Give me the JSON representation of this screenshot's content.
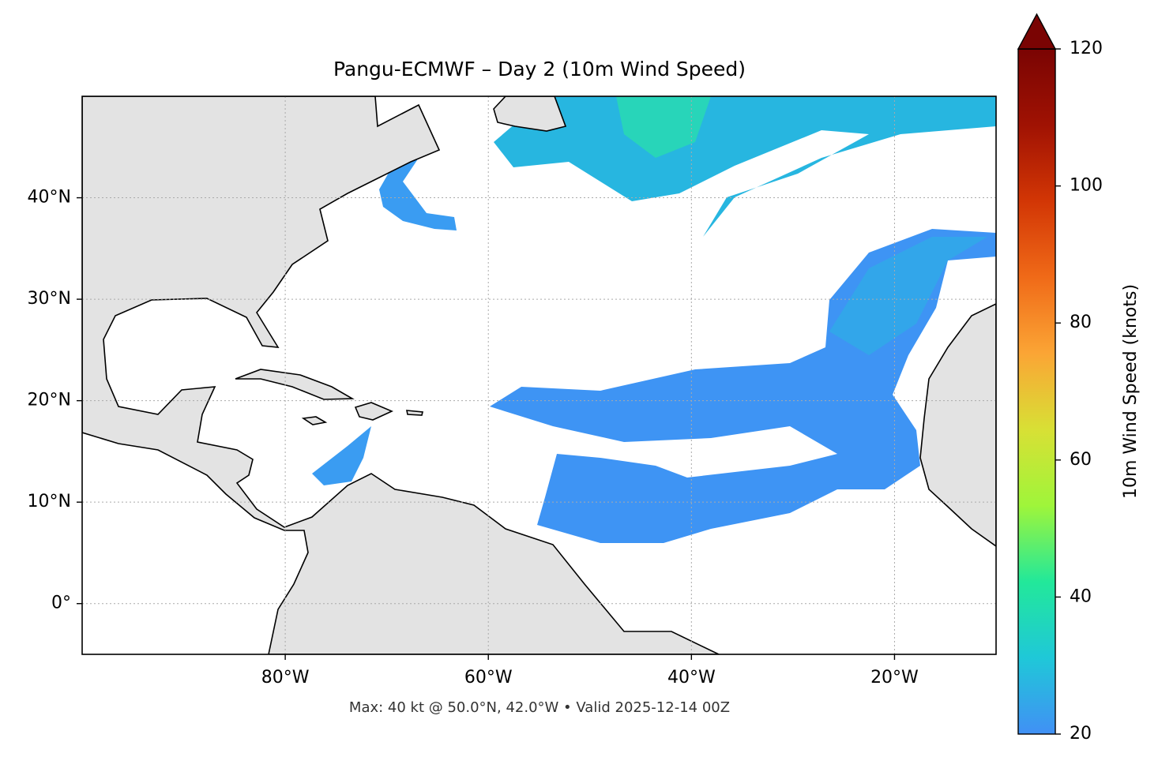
{
  "chart_data": {
    "type": "map",
    "title": "Pangu-ECMWF – Day 2 (10m Wind Speed)",
    "footer": "Max: 40 kt @ 50.0°N, 42.0°W • Valid 2025-12-14 00Z",
    "xlim": [
      -100,
      -10
    ],
    "ylim": [
      -5,
      50
    ],
    "xticks": [
      {
        "value": -80,
        "label": "80°W"
      },
      {
        "value": -60,
        "label": "60°W"
      },
      {
        "value": -40,
        "label": "40°W"
      },
      {
        "value": -20,
        "label": "20°W"
      }
    ],
    "yticks": [
      {
        "value": 0,
        "label": "0°"
      },
      {
        "value": 10,
        "label": "10°N"
      },
      {
        "value": 20,
        "label": "20°N"
      },
      {
        "value": 30,
        "label": "30°N"
      },
      {
        "value": 40,
        "label": "40°N"
      }
    ],
    "grid": true,
    "colorbar": {
      "label": "10m Wind Speed (knots)",
      "clim": [
        20,
        120
      ],
      "ticks": [
        20,
        40,
        60,
        80,
        100,
        120
      ],
      "colormap": [
        "#4190f5",
        "#1fc8d8",
        "#22e89a",
        "#9ff53a",
        "#d8e035",
        "#fba535",
        "#f06a18",
        "#d23605",
        "#a01203",
        "#7a0403"
      ]
    }
  }
}
